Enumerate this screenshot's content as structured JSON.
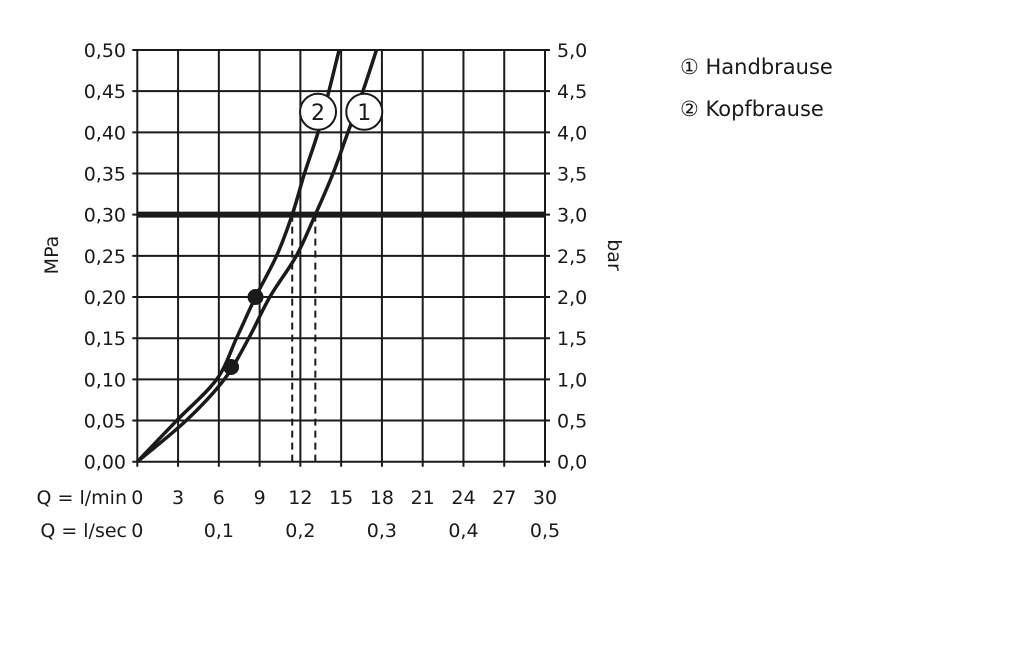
{
  "chart_data": {
    "type": "line",
    "y_left_label": "MPa",
    "y_right_label": "bar",
    "x_row1_label": "Q = l/min",
    "x_row2_label": "Q = l/sec",
    "xlim": [
      0,
      30
    ],
    "ylim": [
      0,
      0.5
    ],
    "grid": true,
    "x_ticks": [
      "0",
      "3",
      "6",
      "9",
      "12",
      "15",
      "18",
      "21",
      "24",
      "27",
      "30"
    ],
    "x2_ticks": [
      {
        "at": 0,
        "label": "0"
      },
      {
        "at": 6,
        "label": "0,1"
      },
      {
        "at": 12,
        "label": "0,2"
      },
      {
        "at": 18,
        "label": "0,3"
      },
      {
        "at": 24,
        "label": "0,4"
      },
      {
        "at": 30,
        "label": "0,5"
      }
    ],
    "y_left_ticks": [
      "0,00",
      "0,05",
      "0,10",
      "0,15",
      "0,20",
      "0,25",
      "0,30",
      "0,35",
      "0,40",
      "0,45",
      "0,50"
    ],
    "y_right_ticks": [
      "0,0",
      "0,5",
      "1,0",
      "1,5",
      "2,0",
      "2,5",
      "3,0",
      "3,5",
      "4,0",
      "4,5",
      "5,0"
    ],
    "reference_line_y": 0.3,
    "series": [
      {
        "name": "Handbrause",
        "marker": "1",
        "points": [
          [
            0,
            0
          ],
          [
            3.6,
            0.05
          ],
          [
            6.4,
            0.1
          ],
          [
            8.2,
            0.15
          ],
          [
            9.75,
            0.2
          ],
          [
            11.7,
            0.25
          ],
          [
            13.1,
            0.3
          ],
          [
            14.4,
            0.35
          ],
          [
            15.5,
            0.4
          ],
          [
            16.6,
            0.45
          ],
          [
            17.6,
            0.5
          ]
        ],
        "dot": [
          6.9,
          0.115
        ],
        "drop_x": 13.1,
        "label_at": [
          16.7,
          0.425
        ]
      },
      {
        "name": "Kopfbrause",
        "marker": "2",
        "points": [
          [
            0,
            0
          ],
          [
            2.9,
            0.05
          ],
          [
            5.84,
            0.1
          ],
          [
            7.3,
            0.15
          ],
          [
            8.7,
            0.2
          ],
          [
            10.25,
            0.25
          ],
          [
            11.4,
            0.3
          ],
          [
            12.3,
            0.35
          ],
          [
            13.3,
            0.4
          ],
          [
            14.1,
            0.45
          ],
          [
            14.85,
            0.5
          ]
        ],
        "dot": [
          8.7,
          0.2
        ],
        "drop_x": 11.4,
        "label_at": [
          13.3,
          0.425
        ]
      }
    ],
    "legend_placement": "top-right",
    "legend": [
      {
        "symbol": "①",
        "text": "Handbrause"
      },
      {
        "symbol": "②",
        "text": "Kopfbrause"
      }
    ]
  }
}
